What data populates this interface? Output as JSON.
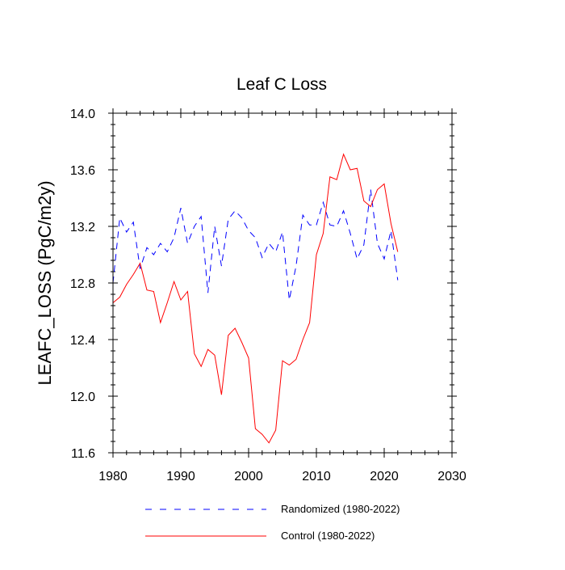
{
  "chart_data": {
    "type": "line",
    "title": "Leaf C Loss",
    "xlabel": "",
    "ylabel": "LEAFC_LOSS  (PgC/m2y)",
    "xlim": [
      1980,
      2030
    ],
    "ylim": [
      11.6,
      14.0
    ],
    "xticks": [
      1980,
      1990,
      2000,
      2010,
      2020,
      2030
    ],
    "yticks": [
      11.6,
      12.0,
      12.4,
      12.8,
      13.2,
      13.6,
      14.0
    ],
    "ytick_labels": [
      "11.6",
      "12.0",
      "12.4",
      "12.8",
      "13.2",
      "13.6",
      "14.0"
    ],
    "legend_position": "bottom",
    "x": [
      1980,
      1981,
      1982,
      1983,
      1984,
      1985,
      1986,
      1987,
      1988,
      1989,
      1990,
      1991,
      1992,
      1993,
      1994,
      1995,
      1996,
      1997,
      1998,
      1999,
      2000,
      2001,
      2002,
      2003,
      2004,
      2005,
      2006,
      2007,
      2008,
      2009,
      2010,
      2011,
      2012,
      2013,
      2014,
      2015,
      2016,
      2017,
      2018,
      2019,
      2020,
      2021,
      2022
    ],
    "series": [
      {
        "name": "Randomized (1980-2022)",
        "color": "#0000ff",
        "style": "dashed",
        "values": [
          12.8,
          13.26,
          13.16,
          13.23,
          12.9,
          13.05,
          13.0,
          13.08,
          13.02,
          13.12,
          13.33,
          13.08,
          13.2,
          13.27,
          12.73,
          13.2,
          12.92,
          13.25,
          13.31,
          13.26,
          13.17,
          13.12,
          12.98,
          13.08,
          13.02,
          13.16,
          12.68,
          12.92,
          13.28,
          13.21,
          13.21,
          13.37,
          13.21,
          13.2,
          13.31,
          13.15,
          12.97,
          13.07,
          13.46,
          13.08,
          12.97,
          13.17,
          12.82
        ]
      },
      {
        "name": "Control (1980-2022)",
        "color": "#ff0000",
        "style": "solid",
        "values": [
          12.66,
          12.7,
          12.79,
          12.86,
          12.94,
          12.75,
          12.74,
          12.52,
          12.66,
          12.81,
          12.68,
          12.74,
          12.3,
          12.21,
          12.33,
          12.29,
          12.01,
          12.43,
          12.48,
          12.38,
          12.27,
          11.77,
          11.73,
          11.67,
          11.76,
          12.25,
          12.22,
          12.26,
          12.4,
          12.52,
          13.0,
          13.15,
          13.55,
          13.53,
          13.71,
          13.6,
          13.61,
          13.38,
          13.34,
          13.46,
          13.5,
          13.22,
          13.02
        ]
      }
    ]
  }
}
